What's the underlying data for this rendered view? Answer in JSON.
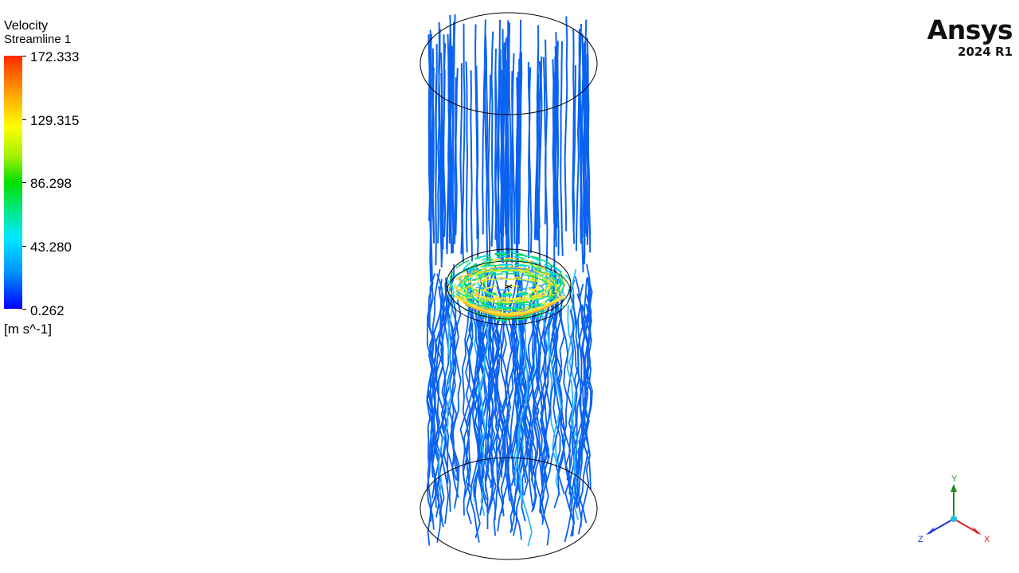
{
  "legend": {
    "title": "Velocity",
    "subtitle": "Streamline 1",
    "units": "[m s^-1]",
    "ticks": [
      "172.333",
      "129.315",
      "86.298",
      "43.280",
      "0.262"
    ]
  },
  "brand": {
    "name": "Ansys",
    "version": "2024 R1"
  },
  "axes": {
    "y": "Y",
    "z": "Z",
    "x": "X"
  },
  "colors": {
    "streamline_low": "#0a62f0",
    "vortex_mid": "#00e060",
    "vortex_high": "#f0f030",
    "outline": "#000000",
    "axis_y": "#1e8c1e",
    "axis_x": "#e02020",
    "axis_z": "#2030e0"
  },
  "icons": [
    "axis-triad-icon",
    "ansys-logo"
  ]
}
